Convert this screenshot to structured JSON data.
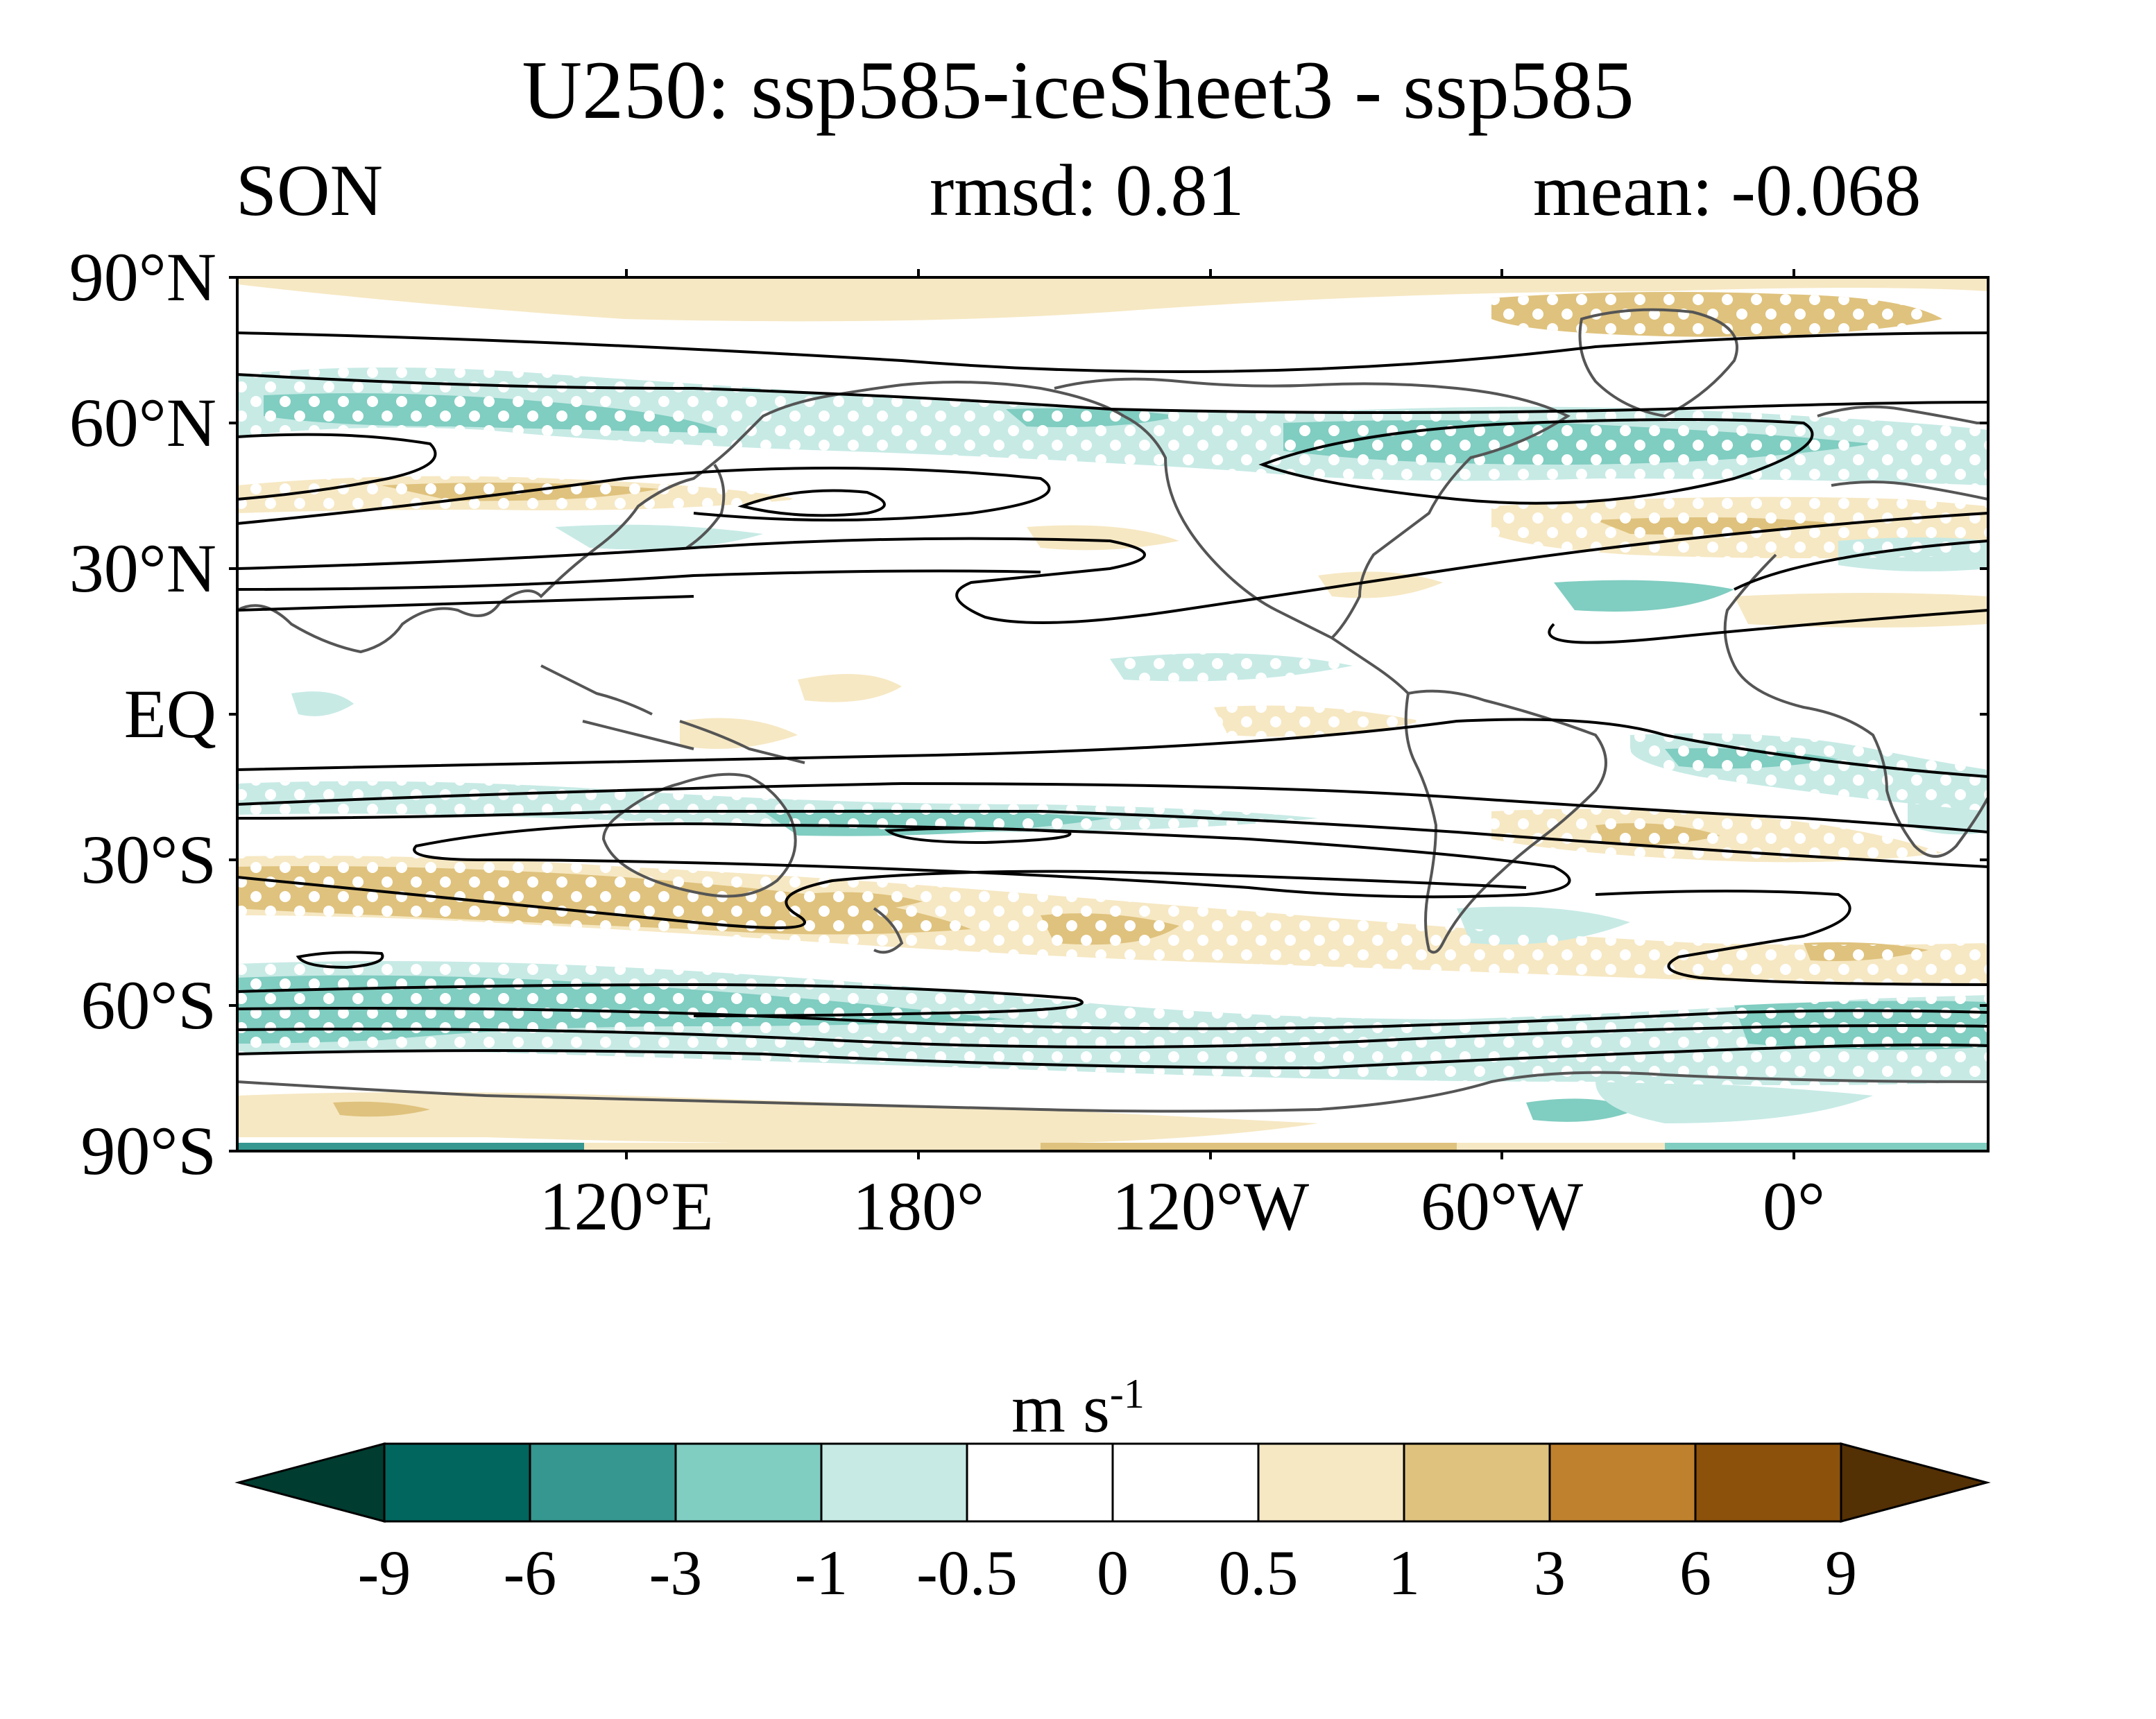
{
  "title": "U250: ssp585-iceSheet3 - ssp585",
  "subtitle_left": "SON",
  "subtitle_center": "rmsd: 0.81",
  "subtitle_right": "mean: -0.068",
  "y_axis_labels": [
    "90°N",
    "60°N",
    "30°N",
    "EQ",
    "30°S",
    "60°S",
    "90°S"
  ],
  "x_axis_labels": [
    "120°E",
    "180°",
    "120°W",
    "60°W",
    "0°"
  ],
  "colorbar": {
    "units_base": "m s",
    "units_exp": "-1",
    "tick_labels": [
      "-9",
      "-6",
      "-3",
      "-1",
      "-0.5",
      "0",
      "0.5",
      "1",
      "3",
      "6",
      "9"
    ],
    "colors": [
      "#003c30",
      "#01665e",
      "#35978f",
      "#80cdc1",
      "#c7eae5",
      "#ffffff",
      "#ffffff",
      "#f6e8c3",
      "#dfc27d",
      "#bf812d",
      "#8c510a",
      "#543005"
    ]
  },
  "map_data": {
    "projection": "equirectangular",
    "lon_range": [
      20,
      380
    ],
    "lat_range": [
      -90,
      90
    ],
    "field": "U250 difference"
  }
}
